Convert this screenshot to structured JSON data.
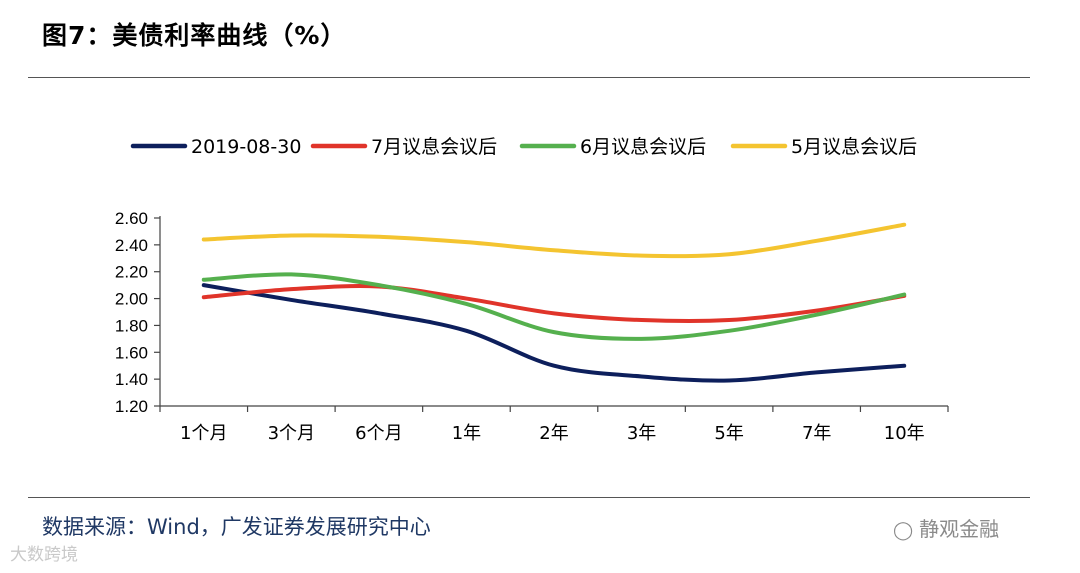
{
  "header": {
    "title": "图7：美债利率曲线（%）"
  },
  "footer": {
    "source": "数据来源：Wind，广发证券发展研究中心"
  },
  "watermarks": {
    "left": "大数跨境",
    "right": "静观金融"
  },
  "colors": {
    "navy": "#0d1f5c",
    "red": "#e0342a",
    "green": "#55b04e",
    "yellow": "#f4c430"
  },
  "chart_data": {
    "type": "line",
    "title": "",
    "xlabel": "",
    "ylabel": "",
    "categories": [
      "1个月",
      "3个月",
      "6个月",
      "1年",
      "2年",
      "3年",
      "5年",
      "7年",
      "10年"
    ],
    "ylim": [
      1.2,
      2.6
    ],
    "yticks": [
      "1.20",
      "1.40",
      "1.60",
      "1.80",
      "2.00",
      "2.20",
      "2.40",
      "2.60"
    ],
    "legend_position": "top",
    "series": [
      {
        "name": "2019-08-30",
        "color": "#0d1f5c",
        "values": [
          2.1,
          1.99,
          1.89,
          1.76,
          1.5,
          1.42,
          1.39,
          1.45,
          1.5
        ]
      },
      {
        "name": "7月议息会议后",
        "color": "#e0342a",
        "values": [
          2.01,
          2.07,
          2.09,
          2.0,
          1.89,
          1.84,
          1.84,
          1.91,
          2.02
        ]
      },
      {
        "name": "6月议息会议后",
        "color": "#55b04e",
        "values": [
          2.14,
          2.18,
          2.1,
          1.96,
          1.75,
          1.7,
          1.76,
          1.88,
          2.03
        ]
      },
      {
        "name": "5月议息会议后",
        "color": "#f4c430",
        "values": [
          2.44,
          2.47,
          2.46,
          2.42,
          2.36,
          2.32,
          2.33,
          2.43,
          2.55
        ]
      }
    ]
  }
}
